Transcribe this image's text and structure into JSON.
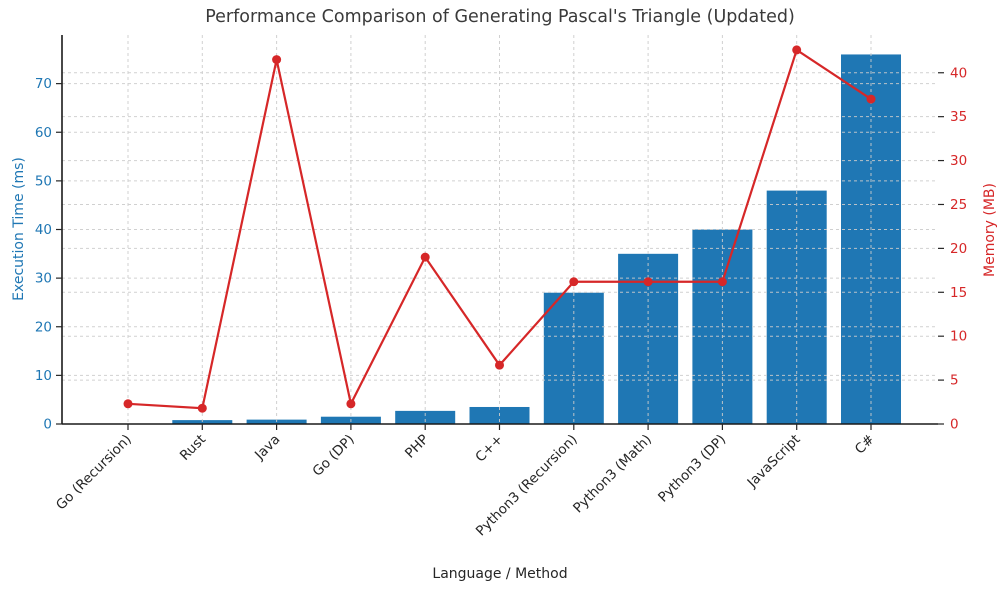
{
  "chart_data": {
    "type": "bar",
    "subtype": "dual-axis-bar-line-combo",
    "title": "Performance Comparison of Generating Pascal's Triangle (Updated)",
    "xlabel": "Language / Method",
    "categories": [
      "Go (Recursion)",
      "Rust",
      "Java",
      "Go (DP)",
      "PHP",
      "C++",
      "Python3 (Recursion)",
      "Python3 (Math)",
      "Python3 (DP)",
      "JavaScript",
      "C#"
    ],
    "series": [
      {
        "name": "Execution Time (ms)",
        "type": "bar",
        "axis": "left",
        "color": "#1f77b4",
        "values": [
          0,
          0.8,
          0.9,
          1.5,
          2.7,
          3.5,
          27,
          35,
          40,
          48,
          76
        ]
      },
      {
        "name": "Memory (MB)",
        "type": "line",
        "axis": "right",
        "color": "#d62728",
        "marker": "circle",
        "values": [
          2.3,
          1.8,
          41.5,
          2.3,
          19,
          6.7,
          16.2,
          16.2,
          16.2,
          42.6,
          37
        ]
      }
    ],
    "axes": {
      "left": {
        "label": "Execution Time (ms)",
        "color": "#1f77b4",
        "ticks": [
          0,
          10,
          20,
          30,
          40,
          50,
          60,
          70
        ],
        "range": [
          0,
          80
        ]
      },
      "right": {
        "label": "Memory (MB)",
        "color": "#d62728",
        "ticks": [
          0,
          5,
          10,
          15,
          20,
          25,
          30,
          35,
          40
        ],
        "range": [
          0,
          44.3
        ]
      },
      "bottom": {
        "tick_rotation_deg": 45,
        "tick_color": "#262626"
      }
    },
    "grid": {
      "show": true,
      "style": "dashed",
      "color": "#cccccc",
      "above_bars": true
    },
    "legend": {
      "show": false
    },
    "spine_color": "#1a1a1a",
    "background": "#ffffff"
  }
}
